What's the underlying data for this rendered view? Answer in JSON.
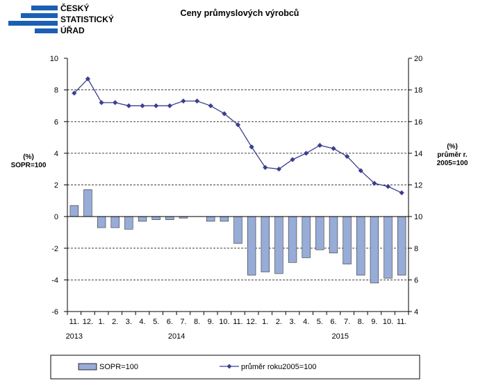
{
  "logo": {
    "lines": [
      "ČESKÝ",
      "STATISTICKÝ",
      "ÚŘAD"
    ],
    "color": "#1a5fb4"
  },
  "chart_data": {
    "type": "bar",
    "title": "Ceny průmyslových výrobců",
    "y_left_label": [
      "(%)",
      "SOPR=100"
    ],
    "y_right_label": [
      "(%)",
      "průměr r.",
      "2005=100"
    ],
    "y_left_lim": [
      -6,
      10
    ],
    "y_left_ticks": [
      -6,
      -4,
      -2,
      0,
      2,
      4,
      6,
      8,
      10
    ],
    "y_right_lim": [
      4,
      20
    ],
    "y_right_ticks": [
      4,
      6,
      8,
      10,
      12,
      14,
      16,
      18,
      20
    ],
    "grid_values_left": [
      -4,
      -2,
      2,
      4,
      6,
      8
    ],
    "x_tick_labels": [
      "11.",
      "12.",
      "1.",
      "2.",
      "3.",
      "4.",
      "5.",
      "6.",
      "7.",
      "8.",
      "9.",
      "10.",
      "11.",
      "12.",
      "1.",
      "2.",
      "3.",
      "4.",
      "5.",
      "6.",
      "7.",
      "8.",
      "9.",
      "10.",
      "11."
    ],
    "year_labels": [
      {
        "label": "2013",
        "month_index": 0
      },
      {
        "label": "2014",
        "month_index": 7.5
      },
      {
        "label": "2015",
        "month_index": 19.5
      }
    ],
    "series": [
      {
        "name": "SOPR=100",
        "type": "bar",
        "axis": "left",
        "color": "#98acd8",
        "values": [
          0.7,
          1.7,
          -0.7,
          -0.7,
          -0.8,
          -0.3,
          -0.2,
          -0.2,
          -0.1,
          0.0,
          -0.3,
          -0.3,
          -1.7,
          -3.7,
          -3.5,
          -3.6,
          -2.9,
          -2.6,
          -2.1,
          -2.3,
          -3.0,
          -3.7,
          -4.2,
          -3.9,
          -3.7
        ]
      },
      {
        "name": "průměr roku2005=100",
        "type": "line",
        "axis": "right",
        "color": "#3a3f8f",
        "values": [
          17.8,
          18.7,
          17.2,
          17.2,
          17.0,
          17.0,
          17.0,
          17.0,
          17.3,
          17.3,
          17.0,
          16.5,
          15.8,
          14.4,
          13.1,
          13.0,
          13.6,
          14.0,
          14.5,
          14.3,
          13.8,
          12.9,
          12.1,
          11.9,
          11.5
        ]
      }
    ],
    "legend_position": "bottom"
  }
}
